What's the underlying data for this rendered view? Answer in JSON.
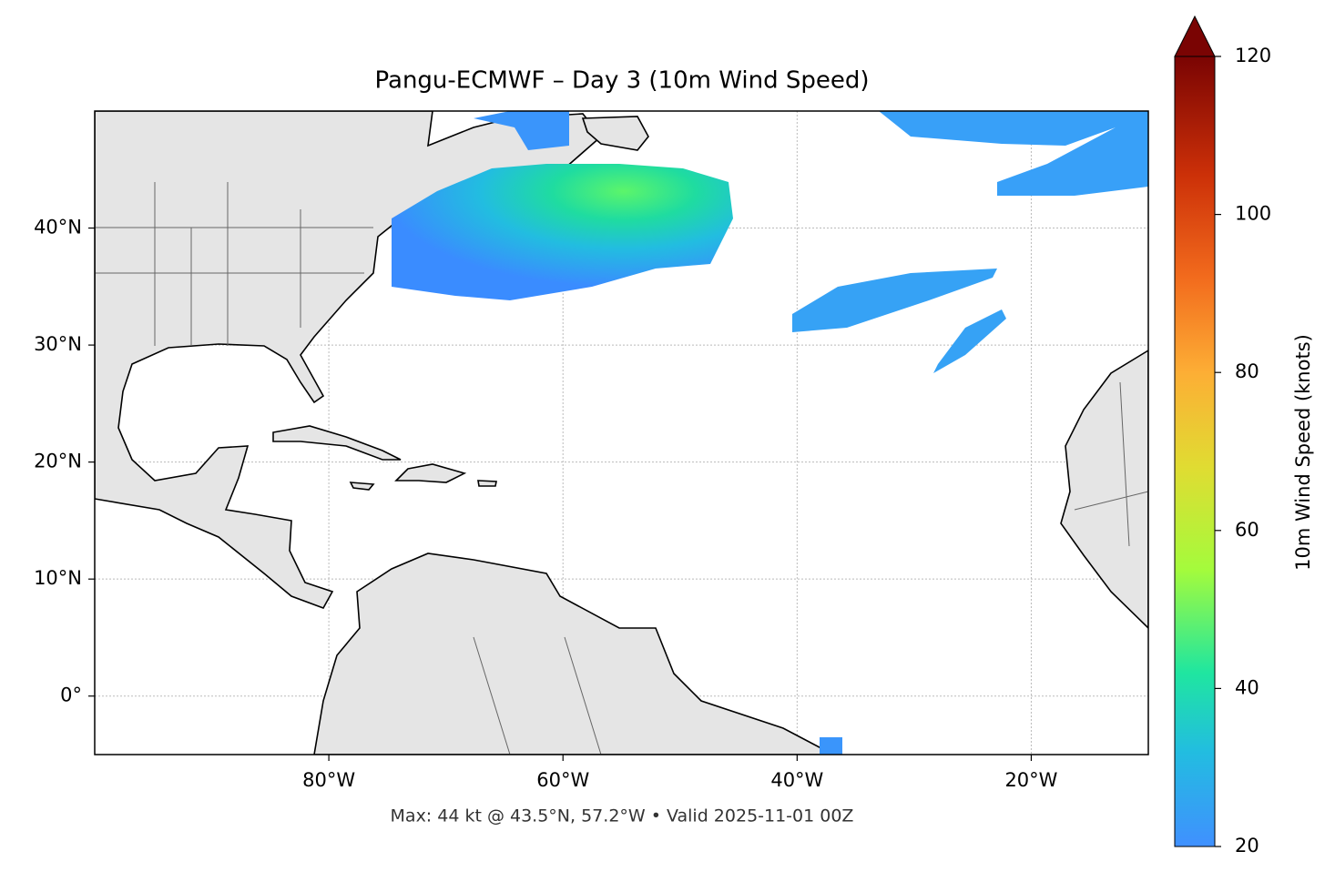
{
  "title": "Pangu-ECMWF – Day 3 (10m Wind Speed)",
  "map": {
    "xlim": [
      -100,
      -10
    ],
    "ylim": [
      -5,
      50
    ],
    "xticks": [
      {
        "value": -80,
        "label": "80°W"
      },
      {
        "value": -60,
        "label": "60°W"
      },
      {
        "value": -40,
        "label": "40°W"
      },
      {
        "value": -20,
        "label": "20°W"
      }
    ],
    "yticks": [
      {
        "value": 0,
        "label": "0°"
      },
      {
        "value": 10,
        "label": "10°N"
      },
      {
        "value": 20,
        "label": "20°N"
      },
      {
        "value": 30,
        "label": "30°N"
      },
      {
        "value": 40,
        "label": "40°N"
      }
    ],
    "grid": true
  },
  "colorbar": {
    "label": "10m Wind Speed (knots)",
    "lim": [
      20,
      120
    ],
    "ticks": [
      20,
      40,
      60,
      80,
      100,
      120
    ]
  },
  "footer": "Max: 44 kt @ 43.5°N, 57.2°W • Valid 2025-11-01 00Z"
}
